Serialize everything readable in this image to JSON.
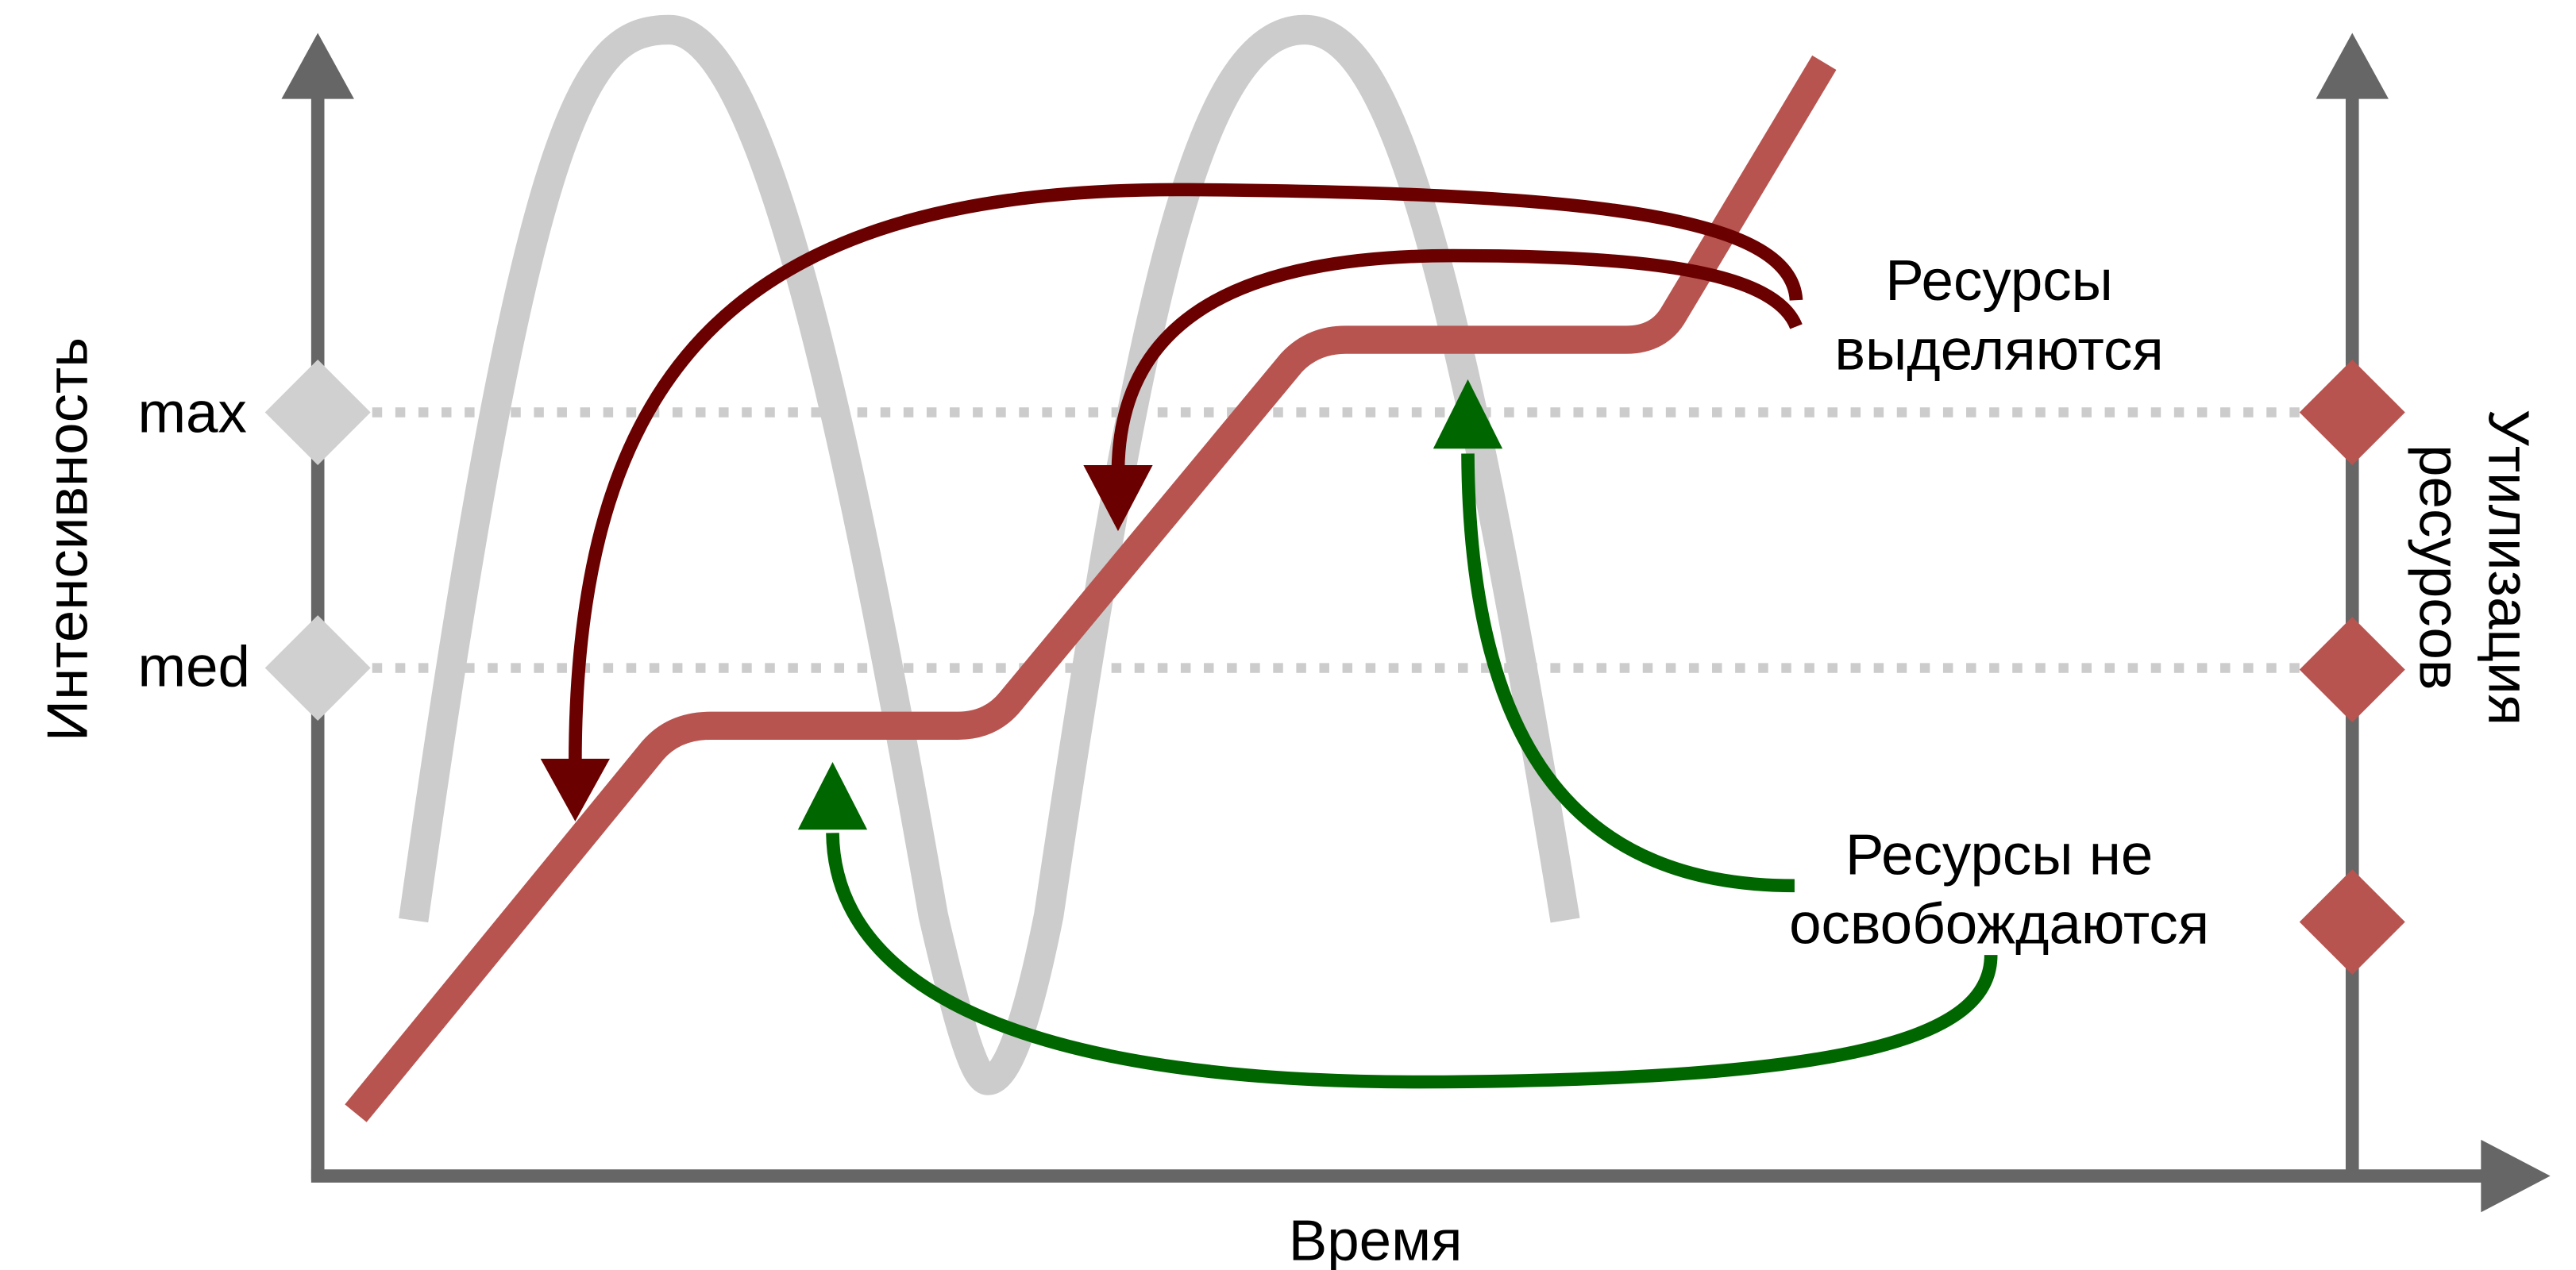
{
  "labels": {
    "y_axis_left": "Интенсивность",
    "y_axis_right": "Утилизация ресурсов",
    "x_axis": "Время",
    "level_max": "max",
    "level_med": "med",
    "allocated_line1": "Ресурсы",
    "allocated_line2": "выделяются",
    "not_freed_line1": "Ресурсы не",
    "not_freed_line2": "освобождаются"
  },
  "colors": {
    "axis": "#666666",
    "intensity_wave": "#cccccc",
    "utilization": "#b85450",
    "allocate_arrow": "#6b0000",
    "release_arrow": "#006600",
    "level_line": "#cccccc",
    "left_marker": "#d0d0d0",
    "right_marker": "#b85450"
  }
}
